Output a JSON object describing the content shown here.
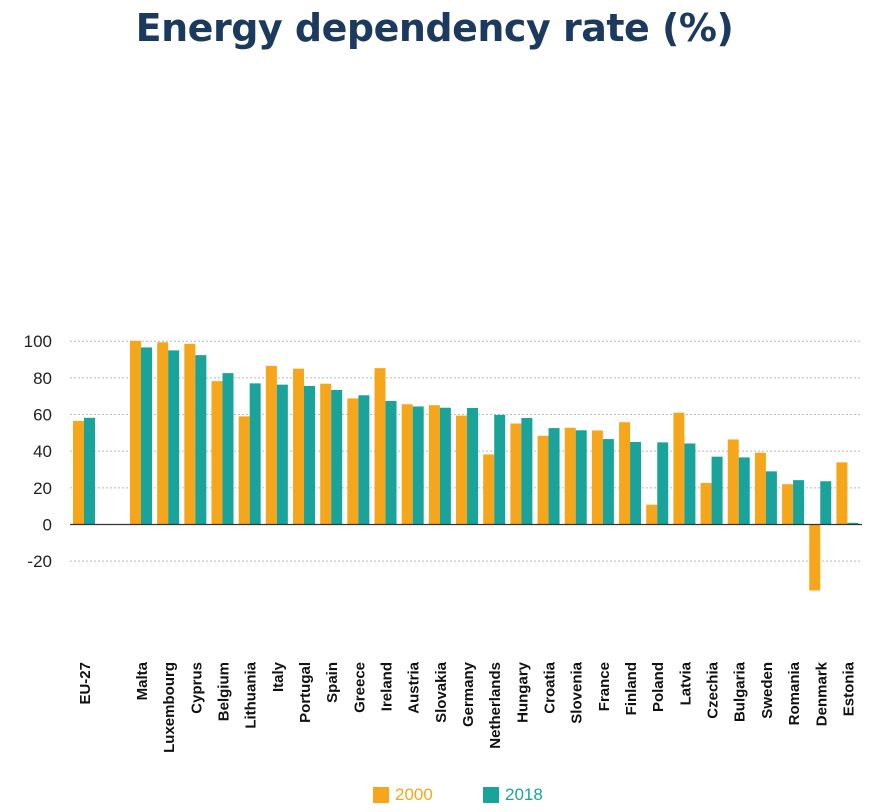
{
  "chart_data": {
    "type": "bar",
    "title": "Energy dependency rate (%)",
    "xlabel": "",
    "ylabel": "",
    "ylim": [
      -35,
      105
    ],
    "yticks": [
      -20,
      0,
      20,
      40,
      60,
      80,
      100
    ],
    "grid": true,
    "legend_position": "bottom",
    "categories": [
      "EU-27",
      "Malta",
      "Luxembourg",
      "Cyprus",
      "Belgium",
      "Lithuania",
      "Italy",
      "Portugal",
      "Spain",
      "Greece",
      "Ireland",
      "Austria",
      "Slovakia",
      "Germany",
      "Netherlands",
      "Hungary",
      "Croatia",
      "Slovenia",
      "France",
      "Finland",
      "Poland",
      "Latvia",
      "Czechia",
      "Bulgaria",
      "Sweden",
      "Romania",
      "Denmark",
      "Estonia"
    ],
    "series": [
      {
        "name": "2000",
        "color": "#f5a61a",
        "values": [
          56.5,
          100.2,
          99.4,
          98.6,
          78.2,
          59.0,
          86.5,
          85.0,
          76.8,
          68.8,
          85.3,
          65.6,
          65.1,
          59.4,
          38.2,
          55.1,
          48.4,
          52.8,
          51.3,
          55.8,
          10.8,
          61.0,
          22.7,
          46.4,
          39.2,
          22.0,
          -36.0,
          33.9
        ]
      },
      {
        "name": "2018",
        "color": "#1aa39b",
        "values": [
          58.2,
          96.6,
          95.0,
          92.4,
          82.6,
          77.0,
          76.3,
          75.6,
          73.4,
          70.5,
          67.4,
          64.4,
          63.7,
          63.6,
          59.8,
          58.1,
          52.6,
          51.4,
          46.6,
          45.0,
          44.8,
          44.2,
          37.0,
          36.6,
          29.0,
          24.2,
          23.6,
          0.9
        ]
      }
    ]
  },
  "legend": {
    "items": [
      {
        "label": "2000",
        "color": "#f5a61a"
      },
      {
        "label": "2018",
        "color": "#1aa39b"
      }
    ]
  }
}
